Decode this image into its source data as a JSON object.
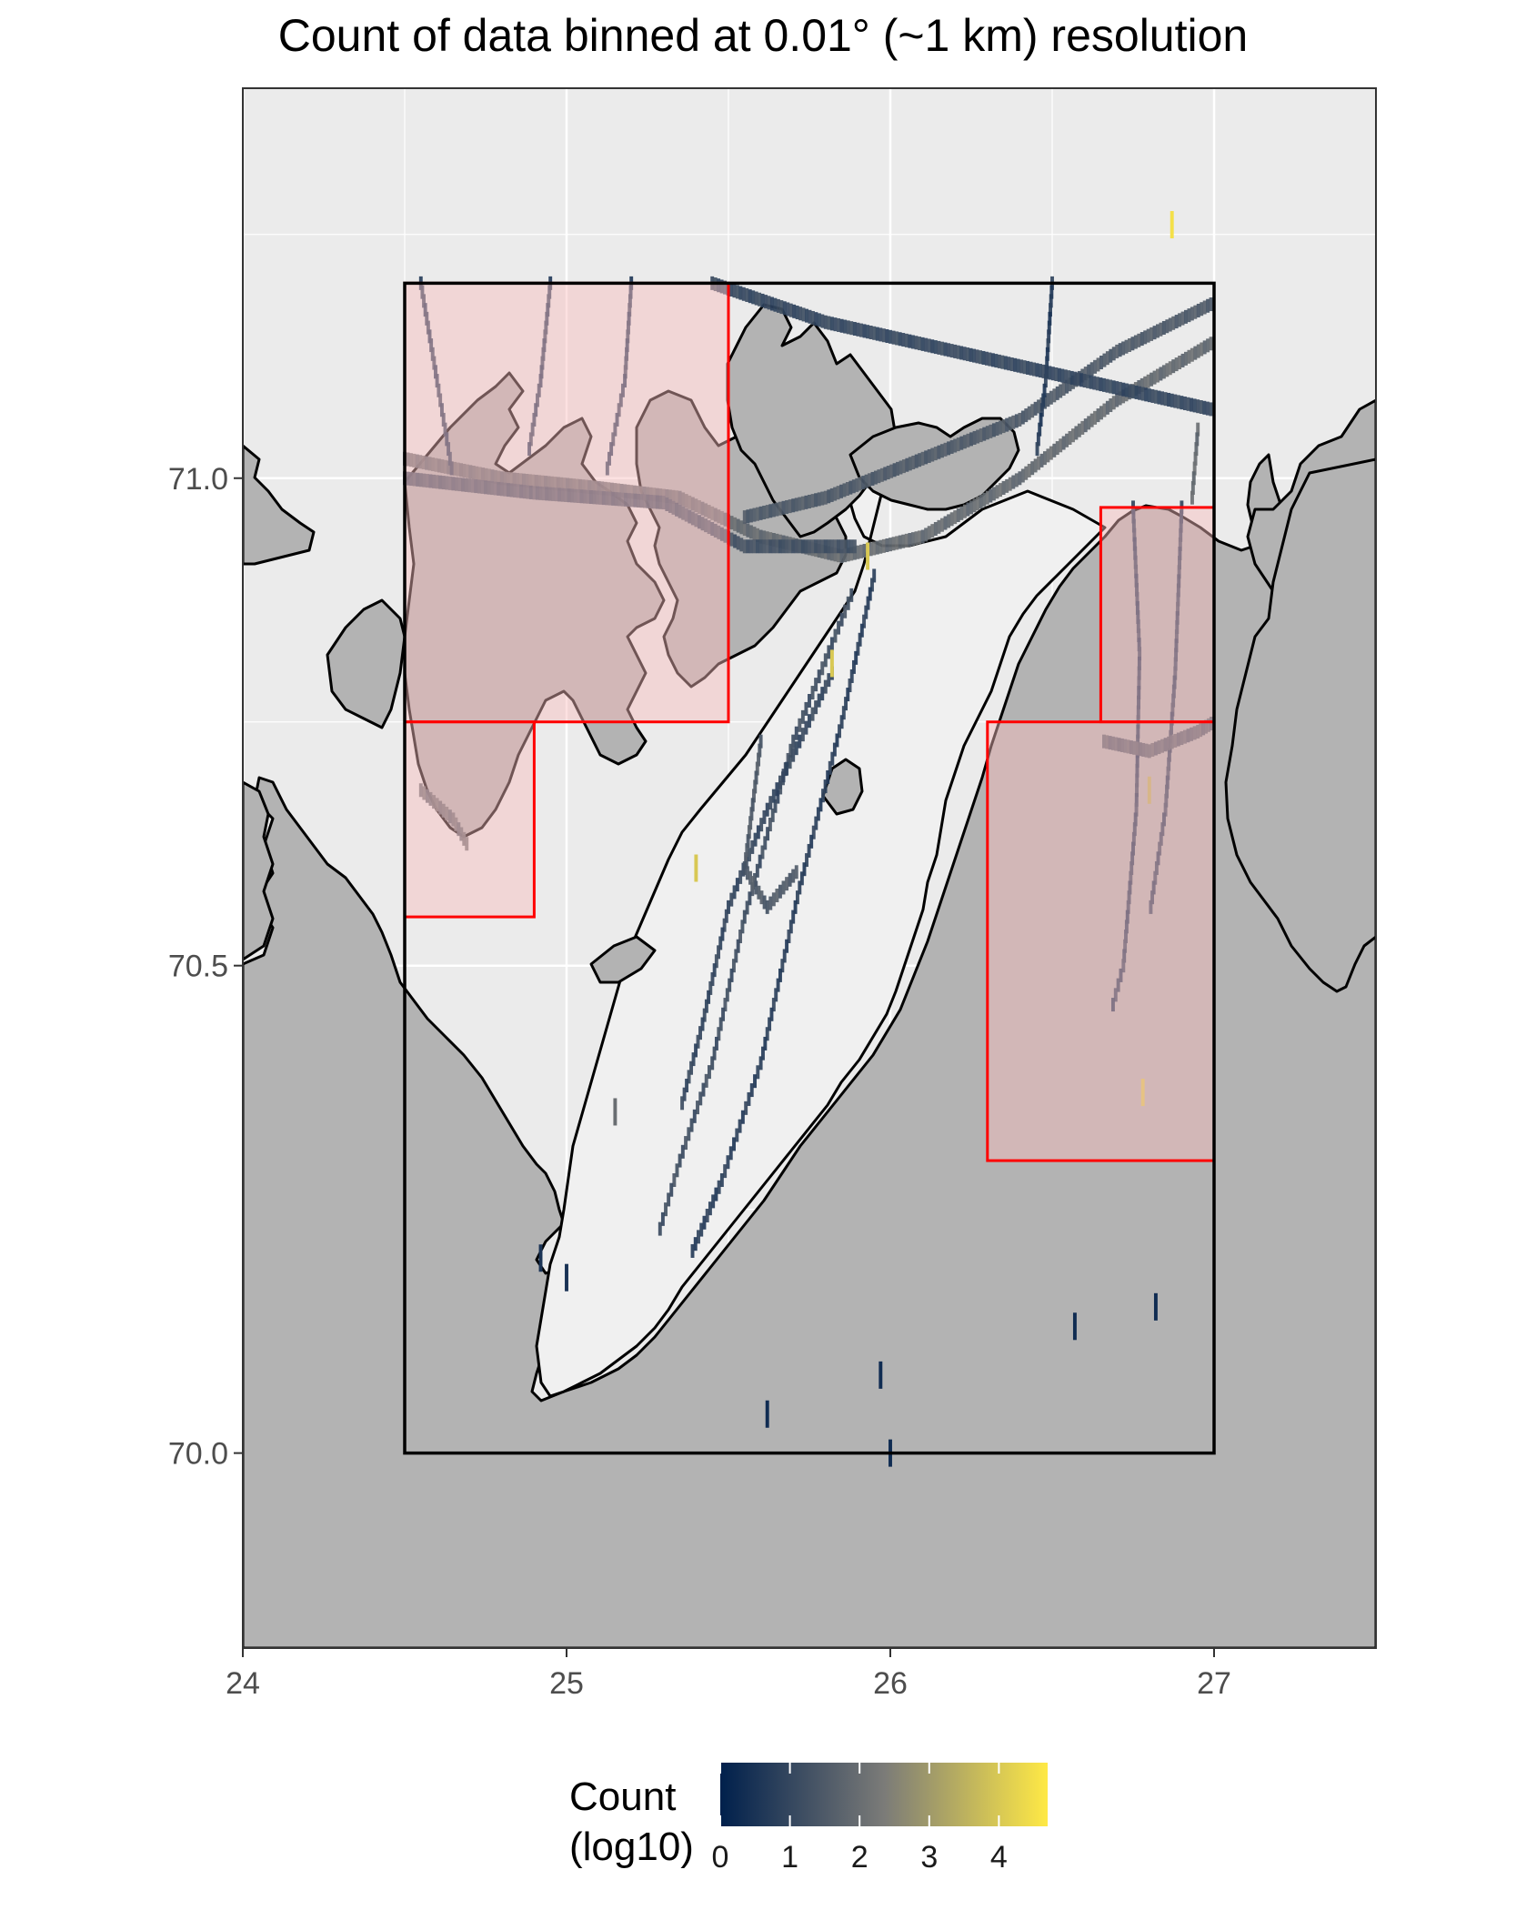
{
  "title": "Count of data binned at 0.01° (~1 km) resolution",
  "colors": {
    "panel_background": "#ebebeb",
    "grid": "#ffffff",
    "land": "#b3b3b3",
    "coastline": "#000000",
    "fjord_water": "#f0f0f0",
    "study_box": "#000000",
    "red_box_stroke": "#ff0000",
    "red_box_fill": "#f8bcbc",
    "legend_low": "#00204c",
    "legend_mid": "#7b7b78",
    "legend_high": "#ffe945"
  },
  "chart_data": {
    "type": "heatmap",
    "title": "Count of data binned at 0.01° (~1 km) resolution",
    "xlim": [
      24,
      27.5
    ],
    "ylim": [
      69.8,
      71.4
    ],
    "x_ticks": [
      {
        "value": 24,
        "label": "24"
      },
      {
        "value": 25,
        "label": "25"
      },
      {
        "value": 26,
        "label": "26"
      },
      {
        "value": 27,
        "label": "27"
      }
    ],
    "y_ticks": [
      {
        "value": 70.0,
        "label": "70.0"
      },
      {
        "value": 70.5,
        "label": "70.5"
      },
      {
        "value": 71.0,
        "label": "71.0"
      }
    ],
    "grid": true,
    "study_area": {
      "lon": [
        24.5,
        27.0
      ],
      "lat": [
        70.0,
        71.2
      ]
    },
    "highlight_boxes": [
      {
        "lon": [
          24.5,
          25.5
        ],
        "lat": [
          70.75,
          71.2
        ]
      },
      {
        "lon": [
          24.5,
          24.9
        ],
        "lat": [
          70.55,
          70.75
        ]
      },
      {
        "lon": [
          26.65,
          27.0
        ],
        "lat": [
          70.75,
          70.97
        ]
      },
      {
        "lon": [
          26.3,
          27.0
        ],
        "lat": [
          70.3,
          70.75
        ]
      }
    ],
    "tracks": [
      {
        "points": [
          [
            24.5,
            71.02
          ],
          [
            24.8,
            71.0
          ],
          [
            25.1,
            70.99
          ],
          [
            25.35,
            70.98
          ],
          [
            25.6,
            70.94
          ],
          [
            25.85,
            70.92
          ],
          [
            26.1,
            70.94
          ],
          [
            26.4,
            71.0
          ],
          [
            26.7,
            71.08
          ],
          [
            27.0,
            71.14
          ]
        ],
        "log_count": 1.7
      },
      {
        "points": [
          [
            24.5,
            71.0
          ],
          [
            24.9,
            70.985
          ],
          [
            25.3,
            70.975
          ],
          [
            25.55,
            70.93
          ],
          [
            25.9,
            70.93
          ]
        ],
        "log_count": 1.1
      },
      {
        "points": [
          [
            25.55,
            70.96
          ],
          [
            25.8,
            70.98
          ],
          [
            26.1,
            71.02
          ],
          [
            26.4,
            71.06
          ],
          [
            26.7,
            71.13
          ],
          [
            27.0,
            71.18
          ]
        ],
        "log_count": 1.3
      },
      {
        "points": [
          [
            25.45,
            71.2
          ],
          [
            25.8,
            71.16
          ],
          [
            26.2,
            71.13
          ],
          [
            26.6,
            71.1
          ],
          [
            27.0,
            71.07
          ]
        ],
        "log_count": 0.8
      },
      {
        "points": [
          [
            25.95,
            70.9
          ],
          [
            25.85,
            70.75
          ],
          [
            25.72,
            70.58
          ],
          [
            25.6,
            70.4
          ],
          [
            25.48,
            70.28
          ],
          [
            25.38,
            70.2
          ]
        ],
        "log_count": 0.6
      },
      {
        "points": [
          [
            25.88,
            70.88
          ],
          [
            25.7,
            70.73
          ],
          [
            25.55,
            70.55
          ],
          [
            25.45,
            70.4
          ],
          [
            25.35,
            70.3
          ],
          [
            25.28,
            70.22
          ]
        ],
        "log_count": 1.0
      },
      {
        "points": [
          [
            25.82,
            70.8
          ],
          [
            25.62,
            70.66
          ],
          [
            25.5,
            70.56
          ],
          [
            25.42,
            70.44
          ],
          [
            25.35,
            70.35
          ]
        ],
        "log_count": 0.8
      },
      {
        "points": [
          [
            25.6,
            70.73
          ],
          [
            25.55,
            70.6
          ],
          [
            25.62,
            70.56
          ],
          [
            25.72,
            70.6
          ]
        ],
        "log_count": 1.3
      },
      {
        "points": [
          [
            26.75,
            70.97
          ],
          [
            26.77,
            70.82
          ],
          [
            26.76,
            70.66
          ],
          [
            26.72,
            70.5
          ],
          [
            26.68,
            70.45
          ]
        ],
        "log_count": 0.5
      },
      {
        "points": [
          [
            26.9,
            70.97
          ],
          [
            26.88,
            70.8
          ],
          [
            26.85,
            70.66
          ],
          [
            26.8,
            70.55
          ]
        ],
        "log_count": 0.6
      },
      {
        "points": [
          [
            26.66,
            70.73
          ],
          [
            26.8,
            70.72
          ],
          [
            26.95,
            70.74
          ],
          [
            27.0,
            70.75
          ]
        ],
        "log_count": 1.3
      },
      {
        "points": [
          [
            24.55,
            70.68
          ],
          [
            24.65,
            70.65
          ],
          [
            24.7,
            70.62
          ]
        ],
        "log_count": 1.7
      },
      {
        "points": [
          [
            24.55,
            71.2
          ],
          [
            24.6,
            71.1
          ],
          [
            24.65,
            71.0
          ]
        ],
        "log_count": 0.6
      },
      {
        "points": [
          [
            24.95,
            71.2
          ],
          [
            24.92,
            71.1
          ],
          [
            24.88,
            71.02
          ]
        ],
        "log_count": 0.6
      },
      {
        "points": [
          [
            25.2,
            71.2
          ],
          [
            25.18,
            71.1
          ],
          [
            25.12,
            71.0
          ]
        ],
        "log_count": 0.6
      },
      {
        "points": [
          [
            26.5,
            71.2
          ],
          [
            26.48,
            71.1
          ],
          [
            26.45,
            71.02
          ]
        ],
        "log_count": 0.5
      },
      {
        "points": [
          [
            26.95,
            71.05
          ],
          [
            26.93,
            70.97
          ]
        ],
        "log_count": 1.7
      }
    ],
    "cells": [
      {
        "lon": 26.87,
        "lat": 71.26,
        "log_count": 4.5
      },
      {
        "lon": 26.57,
        "lat": 70.13,
        "log_count": 0.3
      },
      {
        "lon": 26.82,
        "lat": 70.15,
        "log_count": 0.3
      },
      {
        "lon": 25.97,
        "lat": 70.08,
        "log_count": 0.3
      },
      {
        "lon": 25.62,
        "lat": 70.04,
        "log_count": 0.3
      },
      {
        "lon": 26.0,
        "lat": 70.0,
        "log_count": 0.3
      },
      {
        "lon": 25.93,
        "lat": 70.92,
        "log_count": 4.0
      },
      {
        "lon": 25.4,
        "lat": 70.6,
        "log_count": 4.0
      },
      {
        "lon": 25.82,
        "lat": 70.81,
        "log_count": 4.0
      },
      {
        "lon": 24.92,
        "lat": 70.2,
        "log_count": 0.5
      },
      {
        "lon": 25.0,
        "lat": 70.18,
        "log_count": 0.5
      },
      {
        "lon": 25.15,
        "lat": 70.35,
        "log_count": 2.0
      },
      {
        "lon": 26.78,
        "lat": 70.37,
        "log_count": 4.0
      },
      {
        "lon": 26.8,
        "lat": 70.68,
        "log_count": 3.5
      }
    ],
    "legend": {
      "title": "Count\n(log10)",
      "title_lines": [
        "Count",
        "(log10)"
      ],
      "range": [
        0,
        4.7
      ],
      "ticks": [
        {
          "value": 0,
          "label": "0"
        },
        {
          "value": 1,
          "label": "1"
        },
        {
          "value": 2,
          "label": "2"
        },
        {
          "value": 3,
          "label": "3"
        },
        {
          "value": 4,
          "label": "4"
        }
      ]
    }
  }
}
